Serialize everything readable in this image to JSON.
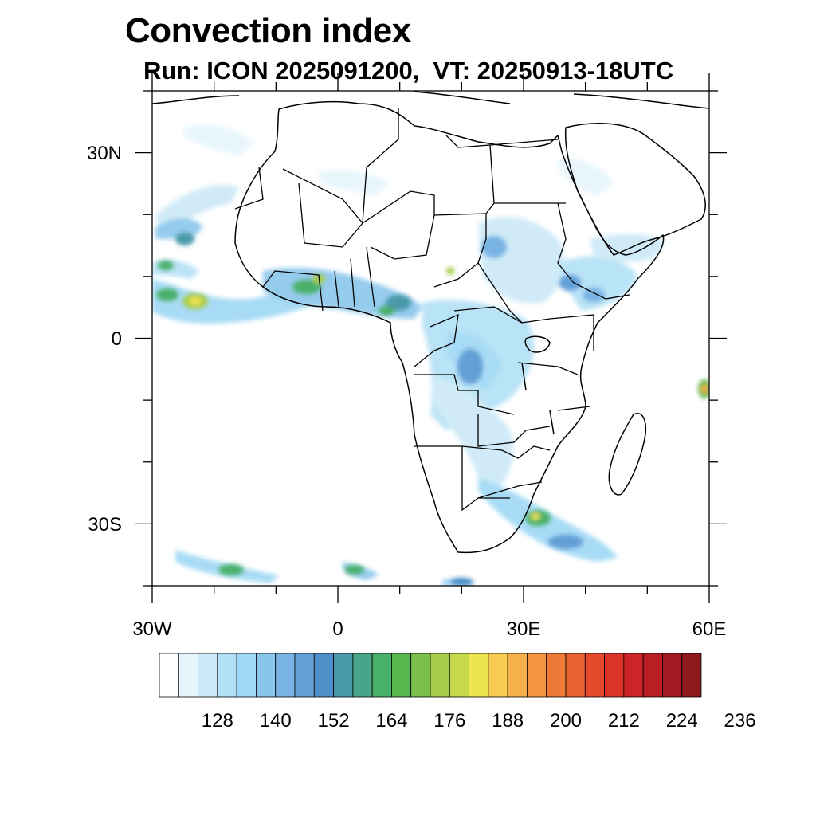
{
  "title": "Convection index",
  "subtitle": "Run: ICON 2025091200,  VT: 20250913-18UTC",
  "map": {
    "projection": "cylindrical equidistant",
    "lon_range": [
      -30,
      60
    ],
    "lat_range": [
      -40,
      40
    ],
    "x_tick_labels": [
      "30W",
      "0",
      "30E",
      "60E"
    ],
    "y_tick_labels": [
      "30N",
      "0",
      "30S"
    ],
    "variable": "Convection index"
  },
  "colorbar": {
    "labels": [
      "128",
      "140",
      "152",
      "164",
      "176",
      "188",
      "200",
      "212",
      "224",
      "236"
    ],
    "colors": [
      "#ffffff",
      "#e6f5fc",
      "#cbe9f7",
      "#b2e0f6",
      "#9fd8f4",
      "#8ac6ec",
      "#78b3e3",
      "#649fd6",
      "#4f8fc9",
      "#4a99a8",
      "#48a58a",
      "#49b06a",
      "#58b64e",
      "#7cbf4d",
      "#a6cc4c",
      "#c8d84d",
      "#eee351",
      "#f7cc50",
      "#f5b04a",
      "#f29440",
      "#ee7a37",
      "#ea6230",
      "#e4492b",
      "#db3328",
      "#cc2527",
      "#b81f25",
      "#a31a22",
      "#8c1a1d"
    ]
  }
}
